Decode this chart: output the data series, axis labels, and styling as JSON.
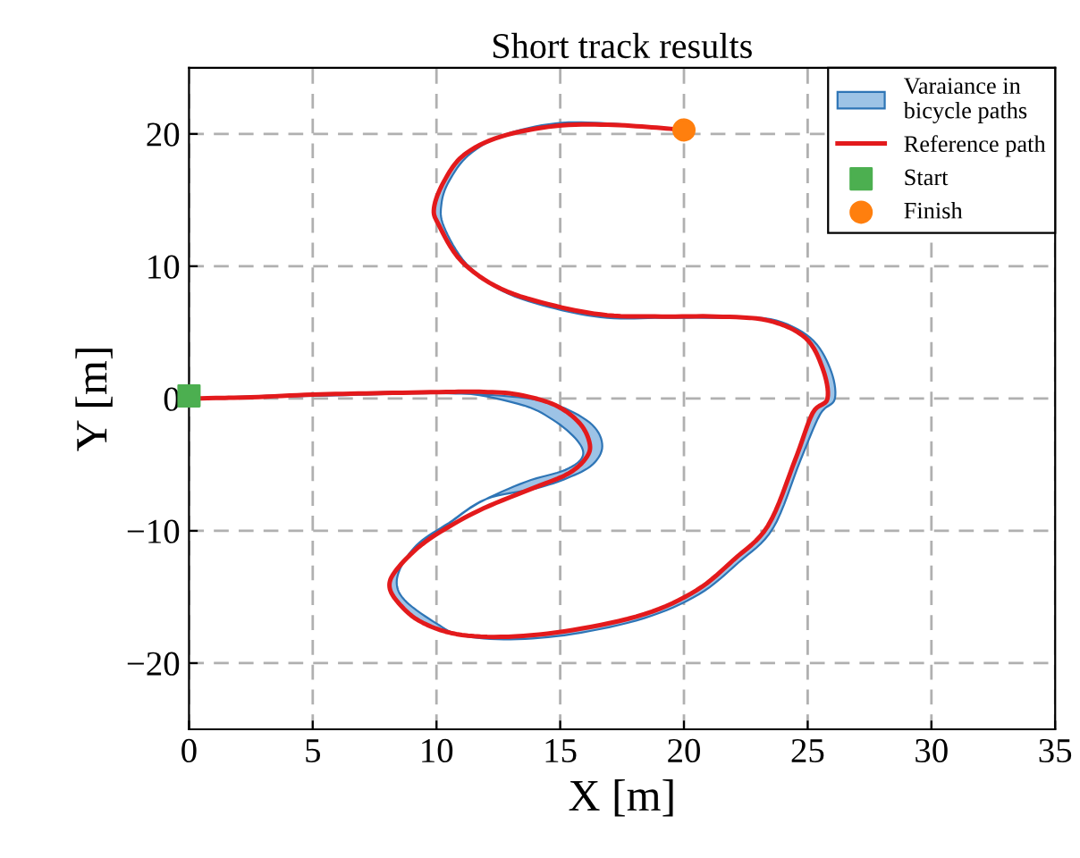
{
  "chart_data": {
    "type": "line",
    "title": "Short track results",
    "xlabel": "X [m]",
    "ylabel": "Y [m]",
    "xlim": [
      0,
      35
    ],
    "ylim": [
      -25,
      25
    ],
    "xticks": [
      0,
      5,
      10,
      15,
      20,
      25,
      30,
      35
    ],
    "yticks": [
      -20,
      -10,
      0,
      10,
      20
    ],
    "grid": true,
    "legend": "top right",
    "series": [
      {
        "name": "Varaiance in\nbicycle paths",
        "type": "area",
        "color": "#9dc3e6",
        "x": [
          0,
          5,
          10,
          13.3,
          15,
          16.3,
          16.7,
          16.3,
          15.3,
          14,
          12,
          10.5,
          9.3,
          8.6,
          8.4,
          8.8,
          10,
          11,
          13,
          15.5,
          18.4,
          20.6,
          22.2,
          23.6,
          24.7,
          25.5,
          26.1,
          25.9,
          25.1,
          23.5,
          21.3,
          19.1,
          16.9,
          14.8,
          12.7,
          11.2,
          10.3,
          10.2,
          10.5,
          11.3,
          12.7,
          14.8,
          16.9,
          18.7,
          20,
          18.7,
          16.9,
          14.8,
          12.6,
          11.1,
          10.3,
          9.9,
          10.1,
          11,
          12.6,
          14.8,
          16.9,
          19.1,
          21.3,
          23.4,
          24.9,
          25.6,
          25.8,
          25.2,
          24.5,
          23.4,
          22,
          20.5,
          18.4,
          15.5,
          12.9,
          10.8,
          9.3,
          8.4,
          8.1,
          8.4,
          9.3,
          10.4,
          11.7,
          13.6,
          15.2,
          15.9,
          15.7,
          14.7,
          13.3,
          10.4,
          5,
          0
        ],
        "values": [
          0,
          0.2,
          0.4,
          0.1,
          -0.6,
          -2,
          -3.6,
          -5,
          -6,
          -6.8,
          -7.6,
          -9.4,
          -10.9,
          -12.6,
          -14.1,
          -15.4,
          -17,
          -17.9,
          -18.2,
          -17.8,
          -16.6,
          -14.8,
          -12.4,
          -9.8,
          -4.7,
          -1.2,
          0,
          2.3,
          4.6,
          6,
          6.1,
          6.1,
          6.1,
          6.8,
          8.1,
          10.2,
          13,
          14.7,
          16.4,
          18.4,
          19.9,
          20.8,
          20.8,
          20.5,
          20.3,
          20.5,
          20.7,
          20.6,
          19.8,
          18.4,
          16.4,
          14.4,
          13.1,
          10.4,
          8.3,
          7,
          6.3,
          6.2,
          6.2,
          5.9,
          4.6,
          2.3,
          0,
          -1.1,
          -4.6,
          -9.6,
          -12.2,
          -14.5,
          -16.3,
          -17.5,
          -18,
          -17.8,
          -16.8,
          -15.3,
          -14.1,
          -12.9,
          -11.1,
          -9.6,
          -7.9,
          -6.3,
          -5.4,
          -4.4,
          -3.2,
          -1.6,
          -0.4,
          0.5,
          0.3,
          0
        ]
      },
      {
        "name": "Reference path",
        "color": "#e31a1c",
        "x": [
          0,
          2.5,
          5,
          7.5,
          10.4,
          11.9,
          13.3,
          14.8,
          15.8,
          16.2,
          16,
          15.3,
          14,
          11.9,
          10.4,
          9.3,
          8.4,
          8.1,
          8.4,
          9.3,
          10.8,
          12.9,
          15.5,
          18.4,
          20.5,
          22,
          23.4,
          24.5,
          25.2,
          25.8,
          25.6,
          24.9,
          23.4,
          21.3,
          19.1,
          16.9,
          14.8,
          12.6,
          11,
          10.1,
          9.9,
          10.3,
          11.1,
          12.6,
          14.8,
          16.9,
          18.7,
          20
        ],
        "values": [
          0,
          0.1,
          0.3,
          0.4,
          0.5,
          0.5,
          0.3,
          -0.5,
          -1.9,
          -3.5,
          -4.6,
          -5.7,
          -6.7,
          -8.3,
          -9.8,
          -11.2,
          -12.9,
          -14.1,
          -15.3,
          -16.8,
          -17.8,
          -18,
          -17.5,
          -16.3,
          -14.5,
          -12.2,
          -9.6,
          -4.6,
          -1.1,
          0,
          2.3,
          4.6,
          5.9,
          6.2,
          6.2,
          6.3,
          7,
          8.3,
          10.4,
          13.1,
          14.4,
          16.4,
          18.4,
          19.8,
          20.6,
          20.7,
          20.5,
          20.3
        ]
      },
      {
        "name": "Start",
        "type": "scatter",
        "color": "#4caf50",
        "marker": "square",
        "x": [
          0
        ],
        "values": [
          0.2
        ]
      },
      {
        "name": "Finish",
        "type": "scatter",
        "color": "#ff7f0e",
        "marker": "circle",
        "x": [
          20
        ],
        "values": [
          20.3
        ]
      }
    ]
  }
}
